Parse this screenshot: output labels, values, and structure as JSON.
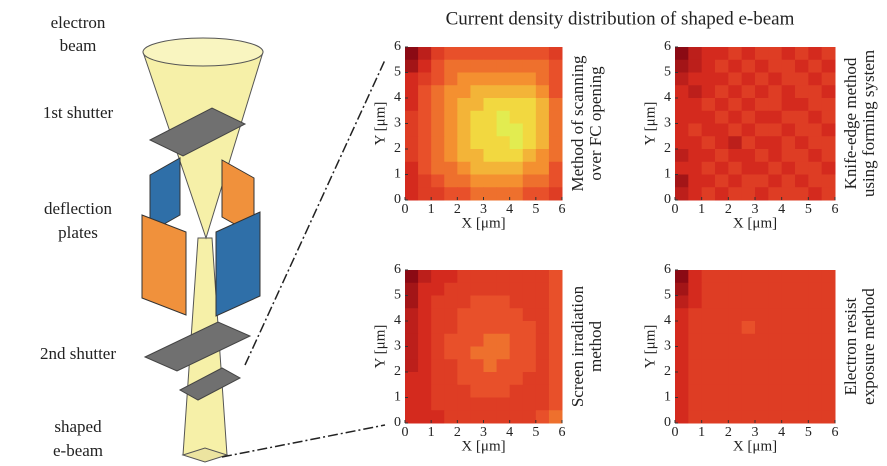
{
  "title": "Current density distribution of shaped e-beam",
  "diagram": {
    "electron_beam": [
      "electron",
      "beam"
    ],
    "first_shutter": "1st shutter",
    "deflection_plates": [
      "deflection",
      "plates"
    ],
    "second_shutter": "2nd shutter",
    "shaped_beam": [
      "shaped",
      "e-beam"
    ]
  },
  "chart_data": [
    {
      "type": "heatmap",
      "title": [
        "Method of scanning",
        "over FC opening"
      ],
      "xlabel": "X [μm]",
      "ylabel": "Y [μm]",
      "xlim": [
        0,
        6
      ],
      "ylim": [
        0,
        6
      ],
      "xticks": [
        0,
        1,
        2,
        3,
        4,
        5,
        6
      ],
      "yticks": [
        0,
        1,
        2,
        3,
        4,
        5,
        6
      ],
      "values": [
        [
          0,
          2,
          4,
          5,
          5,
          5,
          5,
          5,
          5,
          5,
          5,
          4
        ],
        [
          1,
          3,
          5,
          6,
          6,
          6,
          6,
          6,
          6,
          6,
          6,
          5
        ],
        [
          3,
          4,
          5,
          6,
          7,
          7,
          7,
          7,
          7,
          7,
          6,
          5
        ],
        [
          3,
          5,
          6,
          7,
          7,
          8,
          8,
          8,
          8,
          8,
          7,
          5
        ],
        [
          3,
          5,
          6,
          7,
          8,
          8,
          9,
          9,
          9,
          9,
          8,
          6
        ],
        [
          4,
          5,
          6,
          7,
          8,
          9,
          9,
          10,
          9,
          9,
          8,
          6
        ],
        [
          4,
          5,
          6,
          7,
          8,
          9,
          9,
          10,
          10,
          9,
          8,
          6
        ],
        [
          4,
          5,
          6,
          7,
          8,
          9,
          9,
          9,
          10,
          9,
          8,
          6
        ],
        [
          4,
          5,
          6,
          7,
          8,
          8,
          9,
          9,
          9,
          8,
          7,
          6
        ],
        [
          3,
          5,
          6,
          6,
          7,
          8,
          8,
          8,
          8,
          7,
          7,
          5
        ],
        [
          3,
          4,
          5,
          6,
          6,
          7,
          7,
          7,
          7,
          6,
          6,
          5
        ],
        [
          3,
          4,
          4,
          5,
          5,
          6,
          6,
          6,
          6,
          5,
          5,
          4
        ]
      ]
    },
    {
      "type": "heatmap",
      "title": [
        "Knife-edge method",
        "using forming system"
      ],
      "xlabel": "X [μm]",
      "ylabel": "Y [μm]",
      "xlim": [
        0,
        6
      ],
      "ylim": [
        0,
        6
      ],
      "xticks": [
        0,
        1,
        2,
        3,
        4,
        5,
        6
      ],
      "yticks": [
        0,
        1,
        2,
        3,
        4,
        5,
        6
      ],
      "values": [
        [
          0,
          2,
          3,
          3,
          4,
          3,
          4,
          4,
          3,
          4,
          3,
          4
        ],
        [
          1,
          2,
          3,
          4,
          3,
          4,
          3,
          4,
          4,
          3,
          4,
          3
        ],
        [
          2,
          3,
          3,
          3,
          4,
          3,
          4,
          3,
          4,
          4,
          3,
          4
        ],
        [
          3,
          2,
          3,
          4,
          3,
          4,
          3,
          4,
          3,
          4,
          4,
          3
        ],
        [
          3,
          3,
          4,
          3,
          4,
          3,
          4,
          4,
          3,
          3,
          4,
          4
        ],
        [
          3,
          3,
          3,
          4,
          3,
          4,
          3,
          3,
          4,
          4,
          3,
          4
        ],
        [
          3,
          4,
          3,
          3,
          4,
          3,
          4,
          4,
          3,
          4,
          4,
          3
        ],
        [
          3,
          3,
          4,
          3,
          2,
          4,
          3,
          3,
          4,
          3,
          4,
          4
        ],
        [
          2,
          3,
          3,
          4,
          3,
          3,
          4,
          3,
          4,
          4,
          3,
          4
        ],
        [
          3,
          3,
          4,
          3,
          4,
          3,
          3,
          4,
          3,
          4,
          4,
          3
        ],
        [
          1,
          3,
          3,
          4,
          3,
          4,
          4,
          3,
          4,
          3,
          4,
          4
        ],
        [
          2,
          3,
          4,
          3,
          4,
          4,
          3,
          4,
          4,
          4,
          3,
          4
        ]
      ]
    },
    {
      "type": "heatmap",
      "title": [
        "Screen irradiation",
        "method"
      ],
      "xlabel": "X [μm]",
      "ylabel": "Y [μm]",
      "xlim": [
        0,
        6
      ],
      "ylim": [
        0,
        6
      ],
      "xticks": [
        0,
        1,
        2,
        3,
        4,
        5,
        6
      ],
      "yticks": [
        0,
        1,
        2,
        3,
        4,
        5,
        6
      ],
      "values": [
        [
          0,
          2,
          3,
          3,
          4,
          4,
          4,
          4,
          4,
          4,
          4,
          5
        ],
        [
          1,
          3,
          3,
          4,
          4,
          4,
          4,
          4,
          4,
          4,
          4,
          5
        ],
        [
          1,
          3,
          4,
          4,
          4,
          5,
          5,
          5,
          4,
          4,
          4,
          5
        ],
        [
          2,
          3,
          4,
          4,
          5,
          5,
          5,
          5,
          5,
          4,
          4,
          5
        ],
        [
          2,
          3,
          4,
          4,
          5,
          5,
          5,
          5,
          5,
          5,
          4,
          5
        ],
        [
          2,
          3,
          4,
          5,
          5,
          5,
          6,
          6,
          5,
          5,
          4,
          5
        ],
        [
          2,
          3,
          4,
          5,
          5,
          6,
          6,
          6,
          5,
          5,
          4,
          5
        ],
        [
          2,
          3,
          4,
          4,
          5,
          5,
          6,
          5,
          5,
          5,
          4,
          5
        ],
        [
          3,
          3,
          4,
          4,
          5,
          5,
          5,
          5,
          5,
          4,
          4,
          5
        ],
        [
          3,
          3,
          4,
          4,
          4,
          5,
          5,
          5,
          4,
          4,
          4,
          5
        ],
        [
          3,
          3,
          4,
          4,
          4,
          4,
          4,
          4,
          4,
          4,
          4,
          5
        ],
        [
          3,
          3,
          3,
          4,
          4,
          4,
          4,
          4,
          4,
          4,
          5,
          6
        ]
      ]
    },
    {
      "type": "heatmap",
      "title": [
        "Electron resist",
        "exposure method"
      ],
      "xlabel": "X [μm]",
      "ylabel": "Y [μm]",
      "xlim": [
        0,
        6
      ],
      "ylim": [
        0,
        6
      ],
      "xticks": [
        0,
        1,
        2,
        3,
        4,
        5,
        6
      ],
      "yticks": [
        0,
        1,
        2,
        3,
        4,
        5,
        6
      ],
      "values": [
        [
          0,
          3,
          4,
          4,
          4,
          4,
          4,
          4,
          4,
          4,
          4,
          4
        ],
        [
          1,
          3,
          4,
          4,
          4,
          4,
          4,
          4,
          4,
          4,
          4,
          4
        ],
        [
          2,
          3,
          4,
          4,
          4,
          4,
          4,
          4,
          4,
          4,
          4,
          4
        ],
        [
          3,
          4,
          4,
          4,
          4,
          4,
          4,
          4,
          4,
          4,
          4,
          4
        ],
        [
          3,
          4,
          4,
          4,
          4,
          5,
          4,
          4,
          4,
          4,
          4,
          4
        ],
        [
          3,
          4,
          4,
          4,
          4,
          4,
          4,
          4,
          4,
          4,
          4,
          4
        ],
        [
          3,
          4,
          4,
          4,
          4,
          4,
          4,
          4,
          4,
          4,
          4,
          4
        ],
        [
          3,
          4,
          4,
          4,
          4,
          4,
          4,
          4,
          4,
          4,
          4,
          4
        ],
        [
          3,
          4,
          4,
          4,
          4,
          4,
          4,
          4,
          4,
          4,
          4,
          4
        ],
        [
          3,
          4,
          4,
          4,
          4,
          4,
          4,
          4,
          4,
          4,
          4,
          4
        ],
        [
          3,
          4,
          4,
          4,
          4,
          4,
          4,
          4,
          4,
          4,
          4,
          4
        ],
        [
          3,
          4,
          4,
          4,
          4,
          4,
          4,
          4,
          4,
          4,
          4,
          4
        ]
      ]
    }
  ]
}
